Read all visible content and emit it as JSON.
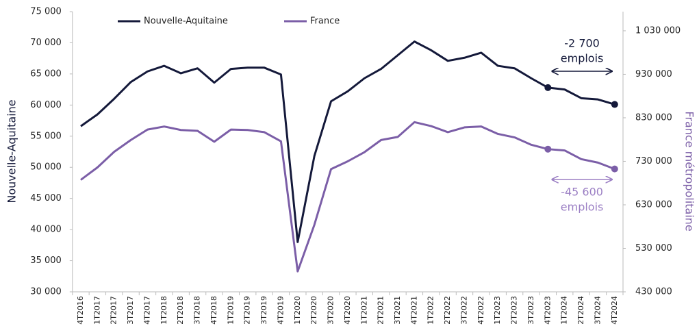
{
  "chart_data": {
    "type": "line",
    "categories": [
      "4T2016",
      "1T2017",
      "2T2017",
      "3T2017",
      "4T2017",
      "1T2018",
      "2T2018",
      "3T2018",
      "4T2018",
      "1T2019",
      "2T2019",
      "3T2019",
      "4T2019",
      "1T2020",
      "2T2020",
      "3T2020",
      "4T2020",
      "1T2021",
      "2T2021",
      "3T2021",
      "4T2021",
      "1T2022",
      "2T2022",
      "3T2022",
      "4T2022",
      "1T2023",
      "2T2023",
      "3T2023",
      "4T2023",
      "1T2024",
      "2T2024",
      "3T2024",
      "4T2024"
    ],
    "series": [
      {
        "name": "Nouvelle-Aquitaine",
        "color": "#14193a",
        "axis": "y",
        "values": [
          56600,
          58500,
          61000,
          63700,
          65400,
          66300,
          65100,
          65900,
          63600,
          65800,
          66000,
          66000,
          64900,
          38000,
          51800,
          60600,
          62200,
          64300,
          65800,
          68000,
          70200,
          68800,
          67100,
          67600,
          68400,
          66300,
          65900,
          64300,
          62800,
          62500,
          61100,
          60900,
          60100
        ]
      },
      {
        "name": "France",
        "color": "#7b5ea7",
        "axis": "y2",
        "values": [
          687400,
          716000,
          751750,
          779000,
          803000,
          810000,
          802000,
          800000,
          775000,
          803000,
          802000,
          797000,
          776000,
          477000,
          584000,
          712000,
          730000,
          751000,
          779000,
          786000,
          820000,
          811000,
          797000,
          808000,
          810000,
          793000,
          785000,
          768000,
          758000,
          755000,
          735000,
          727000,
          712400
        ]
      }
    ],
    "ylabel": "Nouvelle-Aquitaine",
    "y2label": "France métropolitaine",
    "ylim": [
      30000,
      75000
    ],
    "yticks": [
      {
        "value": 30000,
        "label": "30 000"
      },
      {
        "value": 35000,
        "label": "35 000"
      },
      {
        "value": 40000,
        "label": "40 000"
      },
      {
        "value": 45000,
        "label": "45 000"
      },
      {
        "value": 50000,
        "label": "50 000"
      },
      {
        "value": 55000,
        "label": "55 000"
      },
      {
        "value": 60000,
        "label": "60 000"
      },
      {
        "value": 65000,
        "label": "65 000"
      },
      {
        "value": 70000,
        "label": "70 000"
      },
      {
        "value": 75000,
        "label": "75 000"
      }
    ],
    "y2lim": [
      430000,
      1074000
    ],
    "y2ticks": [
      {
        "value": 430000,
        "label": "430 000"
      },
      {
        "value": 530000,
        "label": "530 000"
      },
      {
        "value": 630000,
        "label": "630 000"
      },
      {
        "value": 730000,
        "label": "730 000"
      },
      {
        "value": 830000,
        "label": "830 000"
      },
      {
        "value": 930000,
        "label": "930 000"
      },
      {
        "value": 1030000,
        "label": "1 030 000"
      }
    ],
    "highlight_points": [
      "4T2023",
      "4T2024"
    ],
    "annotations": [
      {
        "lines": [
          "-2 700",
          "emplois"
        ],
        "from": "4T2023",
        "to": "4T2024",
        "color": "#14193a"
      },
      {
        "lines": [
          "-45 600",
          "emplois"
        ],
        "from": "4T2023",
        "to": "4T2024",
        "color": "#9b7fc4"
      }
    ],
    "legend": "top",
    "grid": false
  }
}
